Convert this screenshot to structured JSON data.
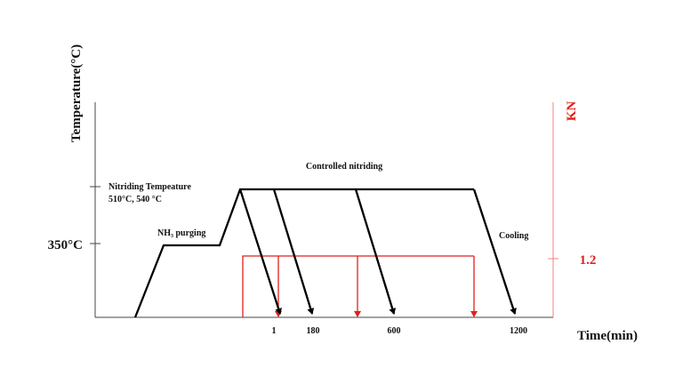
{
  "axes": {
    "y_left_label": "Temperature(°C)",
    "y_right_label": "KN",
    "x_label": "Time(min)",
    "y_left_tick_350": "350°C",
    "y_right_tick": "1.2",
    "x_ticks": [
      "1",
      "180",
      "600",
      "1200"
    ]
  },
  "annotations": {
    "nitriding_temp_line1": "Nitriding Tempeature",
    "nitriding_temp_line2": "510°C, 540 °C",
    "nh3_purging": "NH₃ purging",
    "controlled_nitriding": "Controlled nitriding",
    "cooling": "Cooling"
  },
  "colors": {
    "temperature": "#000000",
    "kn": "#e0201b"
  }
}
